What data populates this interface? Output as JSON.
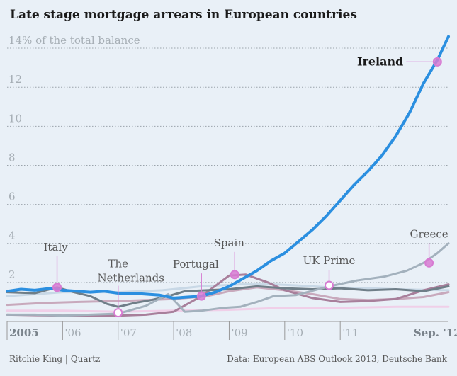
{
  "title": "Late stage mortgage arrears in European countries",
  "credit": "Ritchie King | Quartz",
  "source": "Data: European ABS Outlook 2013, Deutsche Bank",
  "chart_data": {
    "type": "line",
    "title": "Late stage mortgage arrears in European countries",
    "ylabel": "% of the total balance",
    "ylim": [
      0,
      14.8
    ],
    "xlim": [
      2005.0,
      2012.95
    ],
    "yticks": [
      {
        "value": 2,
        "label": "2"
      },
      {
        "value": 4,
        "label": "4"
      },
      {
        "value": 6,
        "label": "6"
      },
      {
        "value": 8,
        "label": "8"
      },
      {
        "value": 10,
        "label": "10"
      },
      {
        "value": 12,
        "label": "12"
      },
      {
        "value": 14,
        "label": "14% of the total balance"
      }
    ],
    "xticks": [
      {
        "value": 2005.0,
        "label": "2005"
      },
      {
        "value": 2006.0,
        "label": "'06"
      },
      {
        "value": 2007.0,
        "label": "'07"
      },
      {
        "value": 2008.0,
        "label": "'08"
      },
      {
        "value": 2009.0,
        "label": "'09"
      },
      {
        "value": 2010.0,
        "label": "'10"
      },
      {
        "value": 2011.0,
        "label": "'11"
      },
      {
        "value": 2012.75,
        "label": "Sep. '12"
      }
    ],
    "colors": {
      "ireland": "#2b8fe0",
      "greece": "#a3b1bd",
      "spain": "#a87f9b",
      "portugal": "#c8a9bc",
      "italy": "#6f7e88",
      "uk": "#c8d8e6",
      "netherlands": "#f0cfe8",
      "marker": "#d77bd2"
    },
    "series": [
      {
        "key": "netherlands",
        "name": "The Netherlands",
        "width": 3,
        "points": [
          [
            2005.0,
            0.55
          ],
          [
            2006.0,
            0.55
          ],
          [
            2007.0,
            0.5
          ],
          [
            2008.0,
            0.55
          ],
          [
            2009.0,
            0.6
          ],
          [
            2010.0,
            0.7
          ],
          [
            2011.0,
            0.7
          ],
          [
            2012.0,
            0.75
          ],
          [
            2012.95,
            0.75
          ]
        ]
      },
      {
        "key": "uk",
        "name": "UK Prime",
        "width": 3,
        "points": [
          [
            2005.0,
            1.3
          ],
          [
            2006.0,
            1.5
          ],
          [
            2007.0,
            1.5
          ],
          [
            2007.8,
            1.6
          ],
          [
            2008.5,
            1.8
          ],
          [
            2009.2,
            1.9
          ],
          [
            2009.8,
            1.9
          ],
          [
            2010.2,
            1.85
          ],
          [
            2010.8,
            1.75
          ],
          [
            2011.5,
            1.7
          ],
          [
            2012.0,
            1.65
          ],
          [
            2012.95,
            1.6
          ]
        ]
      },
      {
        "key": "portugal",
        "name": "Portugal",
        "width": 3,
        "points": [
          [
            2005.0,
            0.85
          ],
          [
            2005.7,
            0.95
          ],
          [
            2006.3,
            1.0
          ],
          [
            2007.0,
            1.05
          ],
          [
            2007.5,
            1.1
          ],
          [
            2008.0,
            1.15
          ],
          [
            2008.6,
            1.3
          ],
          [
            2009.0,
            1.55
          ],
          [
            2009.5,
            1.75
          ],
          [
            2010.0,
            1.6
          ],
          [
            2010.5,
            1.4
          ],
          [
            2011.0,
            1.15
          ],
          [
            2011.5,
            1.1
          ],
          [
            2012.0,
            1.15
          ],
          [
            2012.5,
            1.25
          ],
          [
            2012.95,
            1.5
          ]
        ]
      },
      {
        "key": "spain",
        "name": "Spain",
        "width": 3,
        "points": [
          [
            2005.0,
            0.35
          ],
          [
            2006.0,
            0.3
          ],
          [
            2007.0,
            0.3
          ],
          [
            2007.5,
            0.35
          ],
          [
            2008.0,
            0.5
          ],
          [
            2008.5,
            1.3
          ],
          [
            2009.0,
            2.35
          ],
          [
            2009.3,
            2.4
          ],
          [
            2009.7,
            2.0
          ],
          [
            2010.0,
            1.6
          ],
          [
            2010.5,
            1.2
          ],
          [
            2011.0,
            1.0
          ],
          [
            2011.5,
            1.05
          ],
          [
            2012.0,
            1.15
          ],
          [
            2012.5,
            1.6
          ],
          [
            2012.95,
            1.9
          ]
        ]
      },
      {
        "key": "italy",
        "name": "Italy",
        "width": 3,
        "points": [
          [
            2005.0,
            1.5
          ],
          [
            2005.5,
            1.45
          ],
          [
            2005.9,
            1.75
          ],
          [
            2006.2,
            1.5
          ],
          [
            2006.5,
            1.3
          ],
          [
            2006.8,
            0.9
          ],
          [
            2007.0,
            0.75
          ],
          [
            2007.3,
            0.95
          ],
          [
            2007.6,
            1.1
          ],
          [
            2007.9,
            1.3
          ],
          [
            2008.2,
            1.55
          ],
          [
            2008.6,
            1.6
          ],
          [
            2009.0,
            1.65
          ],
          [
            2009.5,
            1.8
          ],
          [
            2010.0,
            1.7
          ],
          [
            2010.5,
            1.65
          ],
          [
            2011.0,
            1.7
          ],
          [
            2011.5,
            1.6
          ],
          [
            2012.0,
            1.65
          ],
          [
            2012.5,
            1.55
          ],
          [
            2012.95,
            1.8
          ]
        ]
      },
      {
        "key": "greece",
        "name": "Greece",
        "width": 3,
        "points": [
          [
            2005.0,
            0.35
          ],
          [
            2005.5,
            0.35
          ],
          [
            2006.0,
            0.3
          ],
          [
            2006.5,
            0.35
          ],
          [
            2007.0,
            0.4
          ],
          [
            2007.5,
            0.8
          ],
          [
            2007.9,
            1.4
          ],
          [
            2008.2,
            0.5
          ],
          [
            2008.5,
            0.55
          ],
          [
            2008.9,
            0.7
          ],
          [
            2009.2,
            0.75
          ],
          [
            2009.5,
            1.0
          ],
          [
            2009.8,
            1.3
          ],
          [
            2010.2,
            1.35
          ],
          [
            2010.8,
            1.8
          ],
          [
            2011.3,
            2.1
          ],
          [
            2011.8,
            2.3
          ],
          [
            2012.2,
            2.6
          ],
          [
            2012.5,
            3.0
          ],
          [
            2012.75,
            3.5
          ],
          [
            2012.95,
            4.0
          ]
        ]
      },
      {
        "key": "ireland",
        "name": "Ireland",
        "width": 4,
        "points": [
          [
            2005.0,
            1.55
          ],
          [
            2005.25,
            1.65
          ],
          [
            2005.5,
            1.6
          ],
          [
            2005.8,
            1.7
          ],
          [
            2006.0,
            1.6
          ],
          [
            2006.25,
            1.55
          ],
          [
            2006.5,
            1.5
          ],
          [
            2006.75,
            1.55
          ],
          [
            2007.0,
            1.45
          ],
          [
            2007.25,
            1.45
          ],
          [
            2007.5,
            1.4
          ],
          [
            2007.75,
            1.35
          ],
          [
            2008.0,
            1.2
          ],
          [
            2008.25,
            1.25
          ],
          [
            2008.5,
            1.3
          ],
          [
            2008.75,
            1.5
          ],
          [
            2009.0,
            1.8
          ],
          [
            2009.25,
            2.2
          ],
          [
            2009.5,
            2.6
          ],
          [
            2009.75,
            3.1
          ],
          [
            2010.0,
            3.5
          ],
          [
            2010.25,
            4.1
          ],
          [
            2010.5,
            4.7
          ],
          [
            2010.75,
            5.4
          ],
          [
            2011.0,
            6.2
          ],
          [
            2011.25,
            7.0
          ],
          [
            2011.5,
            7.7
          ],
          [
            2011.75,
            8.5
          ],
          [
            2012.0,
            9.5
          ],
          [
            2012.25,
            10.7
          ],
          [
            2012.5,
            12.2
          ],
          [
            2012.75,
            13.4
          ],
          [
            2012.95,
            14.6
          ]
        ]
      }
    ],
    "annotations": [
      {
        "key": "ireland",
        "label": "Ireland",
        "x": 2012.75,
        "y": 13.3,
        "filled": true,
        "bold": true
      },
      {
        "key": "greece",
        "label": "Greece",
        "x": 2012.6,
        "y": 3.0,
        "filled": true
      },
      {
        "key": "uk",
        "label": "UK Prime",
        "x": 2010.8,
        "y": 1.85,
        "filled": false
      },
      {
        "key": "spain",
        "label": "Spain",
        "x": 2009.1,
        "y": 2.4,
        "filled": true
      },
      {
        "key": "portugal",
        "label": "Portugal",
        "x": 2008.5,
        "y": 1.3,
        "filled": true
      },
      {
        "key": "netherlands",
        "label": "The Netherlands",
        "x": 2007.0,
        "y": 0.45,
        "filled": false
      },
      {
        "key": "italy",
        "label": "Italy",
        "x": 2005.9,
        "y": 1.75,
        "filled": true
      }
    ]
  }
}
